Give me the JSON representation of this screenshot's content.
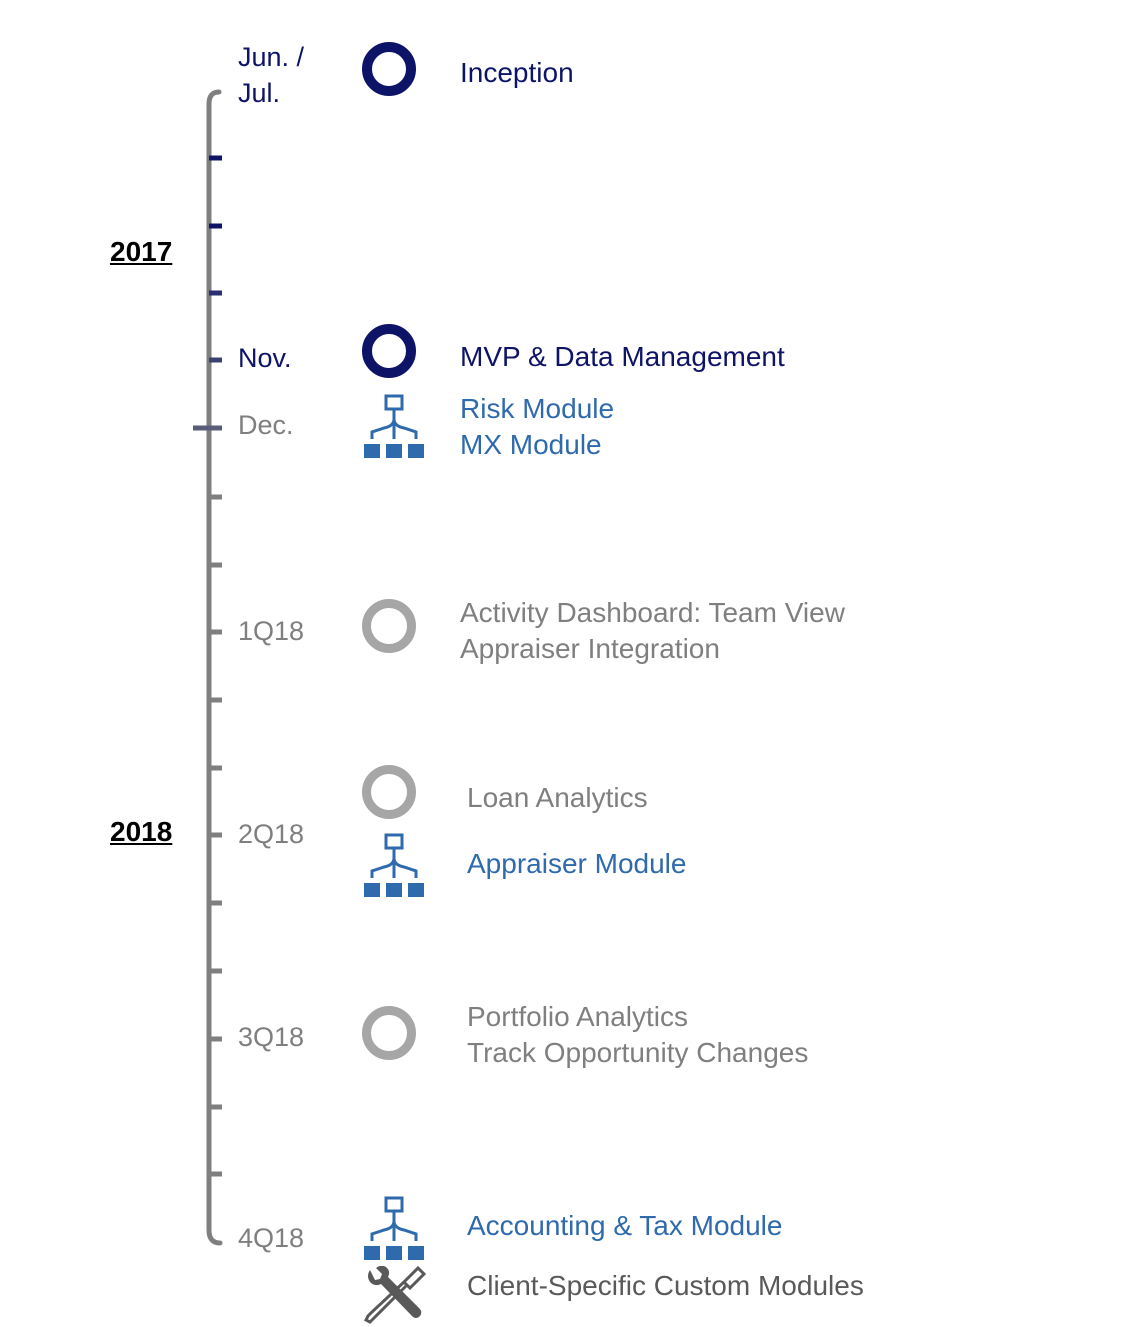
{
  "years": [
    {
      "label": "2017"
    },
    {
      "label": "2018"
    }
  ],
  "dates": [
    {
      "label": "Jun. /\nJul.",
      "color": "#0d1468"
    },
    {
      "label": "Nov.",
      "color": "#0d1468"
    },
    {
      "label": "Dec.",
      "color": "#7f7f7f"
    },
    {
      "label": "1Q18",
      "color": "#7f7f7f"
    },
    {
      "label": "2Q18",
      "color": "#7f7f7f"
    },
    {
      "label": "3Q18",
      "color": "#7f7f7f"
    },
    {
      "label": "4Q18",
      "color": "#7f7f7f"
    }
  ],
  "milestones": [
    {
      "icon": "navy-ring-icon",
      "lines": [
        "Inception"
      ],
      "color": "#0d1468"
    },
    {
      "icon": "navy-ring-icon",
      "lines": [
        "MVP & Data Management"
      ],
      "color": "#0d1468"
    },
    {
      "icon": "module-hierarchy-icon",
      "lines": [
        "Risk Module",
        "MX Module"
      ],
      "color": "#2f6aad"
    },
    {
      "icon": "gray-ring-icon",
      "lines": [
        "Activity Dashboard: Team View",
        "Appraiser Integration"
      ],
      "color": "#7f7f7f"
    },
    {
      "icon": "gray-ring-icon",
      "lines": [
        "Loan Analytics"
      ],
      "color": "#7f7f7f"
    },
    {
      "icon": "module-hierarchy-icon",
      "lines": [
        "Appraiser Module"
      ],
      "color": "#2f6aad"
    },
    {
      "icon": "gray-ring-icon",
      "lines": [
        "Portfolio Analytics",
        "Track Opportunity Changes"
      ],
      "color": "#7f7f7f"
    },
    {
      "icon": "module-hierarchy-icon",
      "lines": [
        "Accounting & Tax Module"
      ],
      "color": "#2f6aad"
    },
    {
      "icon": "wrench-screwdriver-icon",
      "lines": [
        "Client-Specific Custom Modules"
      ],
      "color": "#595959"
    }
  ],
  "colors": {
    "past": "#0d1468",
    "future": "#7f7f7f",
    "module": "#2f6aad",
    "ring_future": "#a6a6a6"
  }
}
